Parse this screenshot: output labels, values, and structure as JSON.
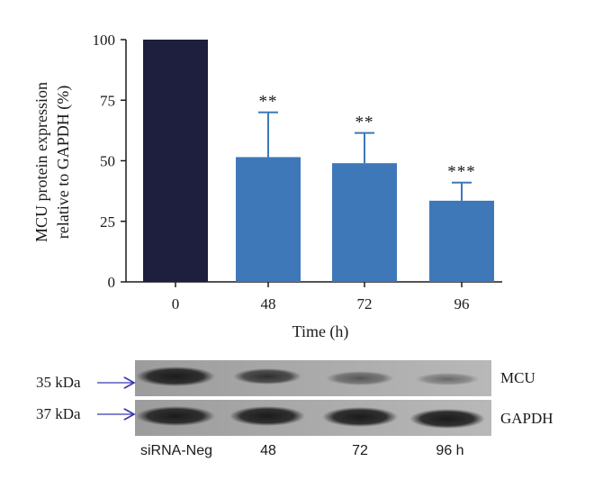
{
  "chart_data": {
    "type": "bar",
    "title": "",
    "xlabel": "Time (h)",
    "ylabel": "MCU protein expression relative to GAPDH (%)",
    "ylabel_lines": [
      "MCU protein expression",
      "relative to GAPDH (%)"
    ],
    "ylim": [
      0,
      100
    ],
    "yticks": [
      0,
      25,
      50,
      75,
      100
    ],
    "categories": [
      "0",
      "48",
      "72",
      "96"
    ],
    "values": [
      100,
      51.5,
      49,
      33.5
    ],
    "errors": [
      0,
      18.5,
      12.5,
      7.5
    ],
    "significance": [
      "",
      "**",
      "**",
      "***"
    ],
    "colors": [
      "#1e1e3f",
      "#3e78b8",
      "#3e78b8",
      "#3e78b8"
    ],
    "error_color": "#3e78b8"
  },
  "blot": {
    "bands": [
      {
        "name": "MCU",
        "marker": "35 kDa"
      },
      {
        "name": "GAPDH",
        "marker": "37 kDa"
      }
    ],
    "lanes": [
      "siRNA-Neg",
      "48",
      "72",
      "96 h"
    ],
    "arrow_color": "#3b3bb0"
  }
}
